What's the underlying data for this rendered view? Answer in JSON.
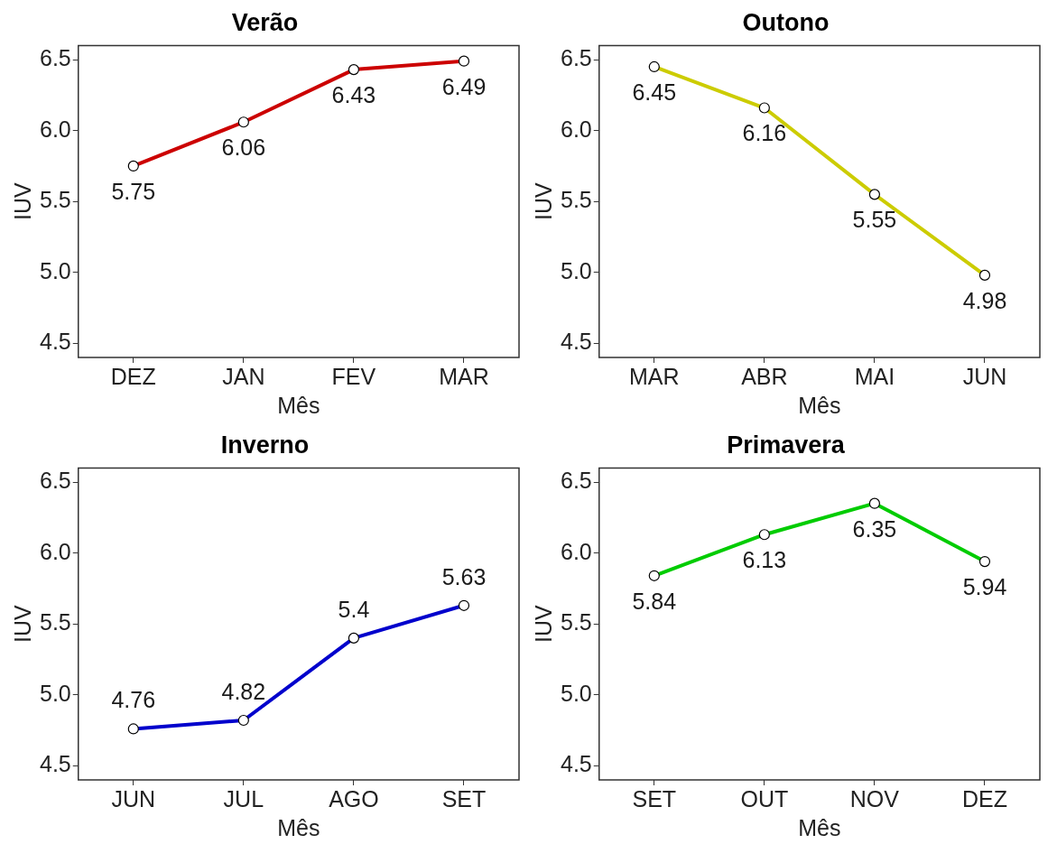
{
  "chart_data": [
    {
      "type": "line",
      "title": "Verão",
      "xlabel": "Mês",
      "ylabel": "IUV",
      "categories": [
        "DEZ",
        "JAN",
        "FEV",
        "MAR"
      ],
      "series": [
        {
          "color": "#cc0000",
          "values": [
            5.75,
            6.06,
            6.43,
            6.49
          ]
        }
      ],
      "ylim": [
        4.4,
        6.6
      ],
      "yticks": [
        {
          "value": 4.5,
          "label": "4.5"
        },
        {
          "value": 5,
          "label": "5.0"
        },
        {
          "value": 5.5,
          "label": "5.5"
        },
        {
          "value": 6,
          "label": "6.0"
        },
        {
          "value": 6.5,
          "label": "6.5"
        }
      ],
      "grid": false,
      "legend": false,
      "marker": "circle",
      "line_style": "solid",
      "data_labels": true
    },
    {
      "type": "line",
      "title": "Outono",
      "xlabel": "Mês",
      "ylabel": "IUV",
      "categories": [
        "MAR",
        "ABR",
        "MAI",
        "JUN"
      ],
      "series": [
        {
          "color": "#cccc00",
          "values": [
            6.45,
            6.16,
            5.55,
            4.98
          ]
        }
      ],
      "ylim": [
        4.4,
        6.6
      ],
      "yticks": [
        {
          "value": 4.5,
          "label": "4.5"
        },
        {
          "value": 5,
          "label": "5.0"
        },
        {
          "value": 5.5,
          "label": "5.5"
        },
        {
          "value": 6,
          "label": "6.0"
        },
        {
          "value": 6.5,
          "label": "6.5"
        }
      ],
      "grid": false,
      "legend": false,
      "marker": "circle",
      "line_style": "solid",
      "data_labels": true
    },
    {
      "type": "line",
      "title": "Inverno",
      "xlabel": "Mês",
      "ylabel": "IUV",
      "categories": [
        "JUN",
        "JUL",
        "AGO",
        "SET"
      ],
      "series": [
        {
          "color": "#0000cc",
          "values": [
            4.76,
            4.82,
            5.4,
            5.63
          ]
        }
      ],
      "ylim": [
        4.4,
        6.6
      ],
      "yticks": [
        {
          "value": 4.5,
          "label": "4.5"
        },
        {
          "value": 5,
          "label": "5.0"
        },
        {
          "value": 5.5,
          "label": "5.5"
        },
        {
          "value": 6,
          "label": "6.0"
        },
        {
          "value": 6.5,
          "label": "6.5"
        }
      ],
      "grid": false,
      "legend": false,
      "marker": "circle",
      "line_style": "solid",
      "data_labels": true
    },
    {
      "type": "line",
      "title": "Primavera",
      "xlabel": "Mês",
      "ylabel": "IUV",
      "categories": [
        "SET",
        "OUT",
        "NOV",
        "DEZ"
      ],
      "series": [
        {
          "color": "#00cc00",
          "values": [
            5.84,
            6.13,
            6.35,
            5.94
          ]
        }
      ],
      "ylim": [
        4.4,
        6.6
      ],
      "yticks": [
        {
          "value": 4.5,
          "label": "4.5"
        },
        {
          "value": 5,
          "label": "5.0"
        },
        {
          "value": 5.5,
          "label": "5.5"
        },
        {
          "value": 6,
          "label": "6.0"
        },
        {
          "value": 6.5,
          "label": "6.5"
        }
      ],
      "grid": false,
      "legend": false,
      "marker": "circle",
      "line_style": "solid",
      "data_labels": true
    }
  ]
}
